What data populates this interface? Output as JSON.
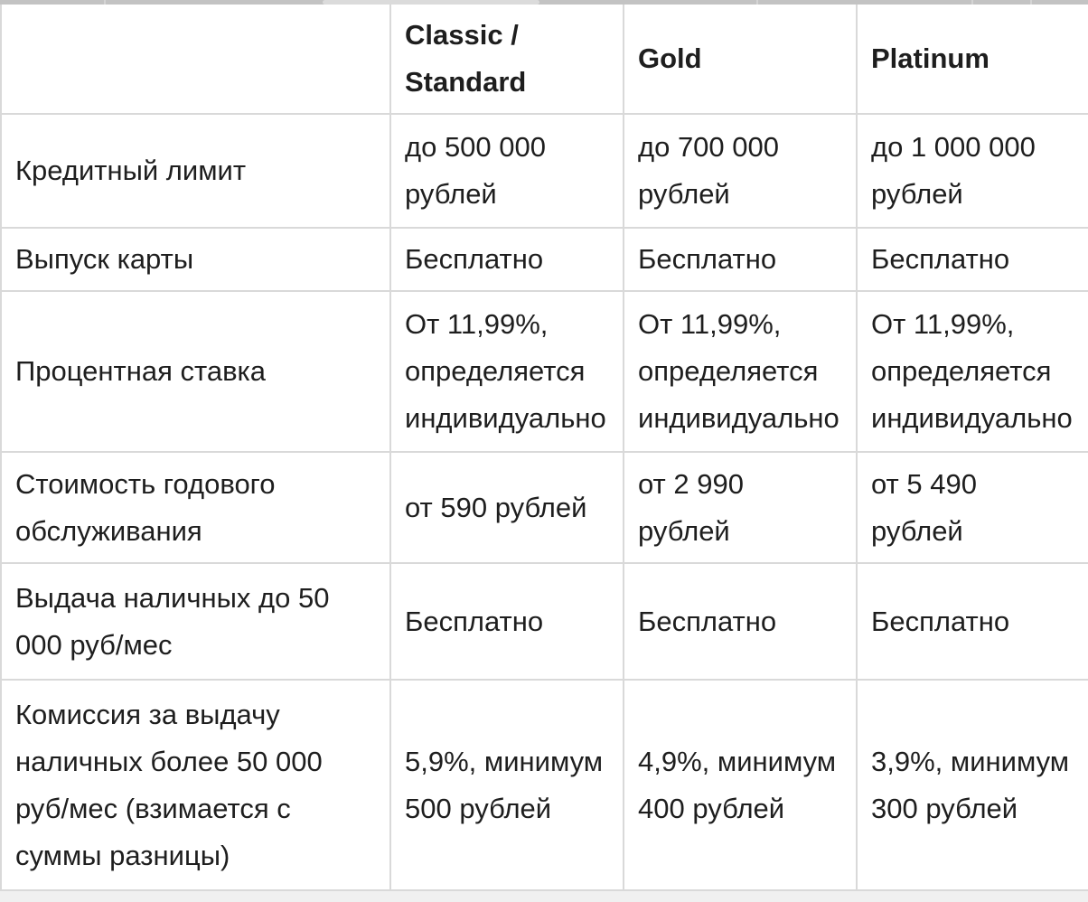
{
  "table": {
    "header": {
      "blank": "",
      "classic": "Classic /\nStandard",
      "gold": "Gold",
      "platinum": "Platinum"
    },
    "rows": [
      {
        "label": "Кредитный лимит",
        "values": [
          "до 500 000\nрублей",
          "до 700 000\nрублей",
          "до 1 000 000\nрублей"
        ]
      },
      {
        "label": "Выпуск карты",
        "values": [
          "Бесплатно",
          "Бесплатно",
          "Бесплатно"
        ]
      },
      {
        "label": "Процентная ставка",
        "values": [
          "От 11,99%,\nопределяется\nиндивидуально",
          "От 11,99%,\nопределяется\nиндивидуально",
          "От 11,99%,\nопределяется\nиндивидуально"
        ]
      },
      {
        "label": "Стоимость годового\nобслуживания",
        "values": [
          "от 590 рублей",
          "от 2 990\nрублей",
          "от 5 490\nрублей"
        ]
      },
      {
        "label": "Выдача наличных до 50\n000 руб/мес",
        "values": [
          "Бесплатно",
          "Бесплатно",
          "Бесплатно"
        ]
      },
      {
        "label": "Комиссия за выдачу\nналичных более 50 000\nруб/мес (взимается с\nсуммы разницы)",
        "values": [
          "5,9%, минимум\n500 рублей",
          "4,9%, минимум\n400 рублей",
          "3,9%, минимум\n300 рублей"
        ]
      }
    ]
  }
}
